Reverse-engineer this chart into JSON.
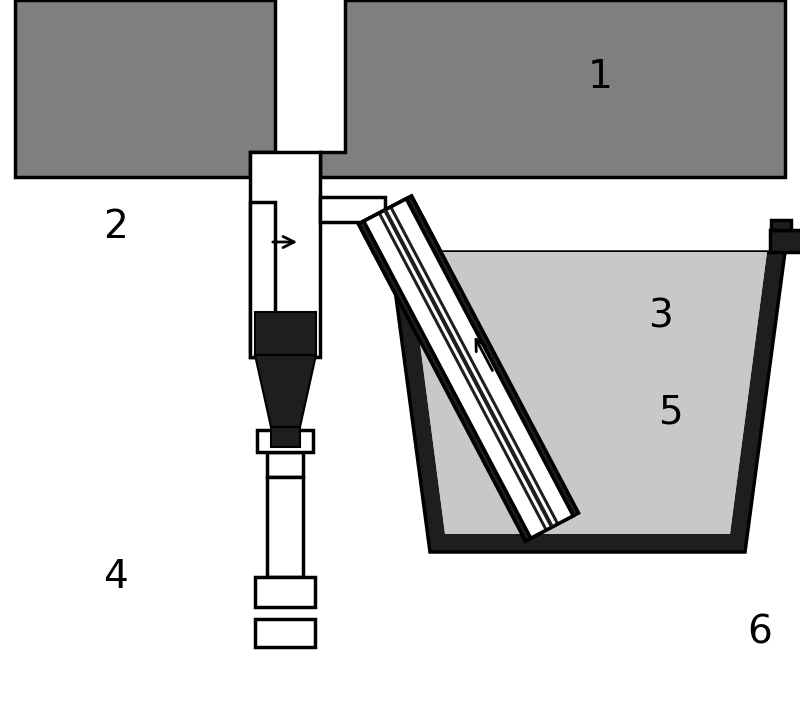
{
  "bg_color": "#ffffff",
  "dark_gray": "#7f7f7f",
  "light_gray": "#c8c8c8",
  "near_black": "#1e1e1e",
  "white": "#ffffff",
  "black": "#000000",
  "label_fontsize": 28,
  "lw_main": 2.5
}
